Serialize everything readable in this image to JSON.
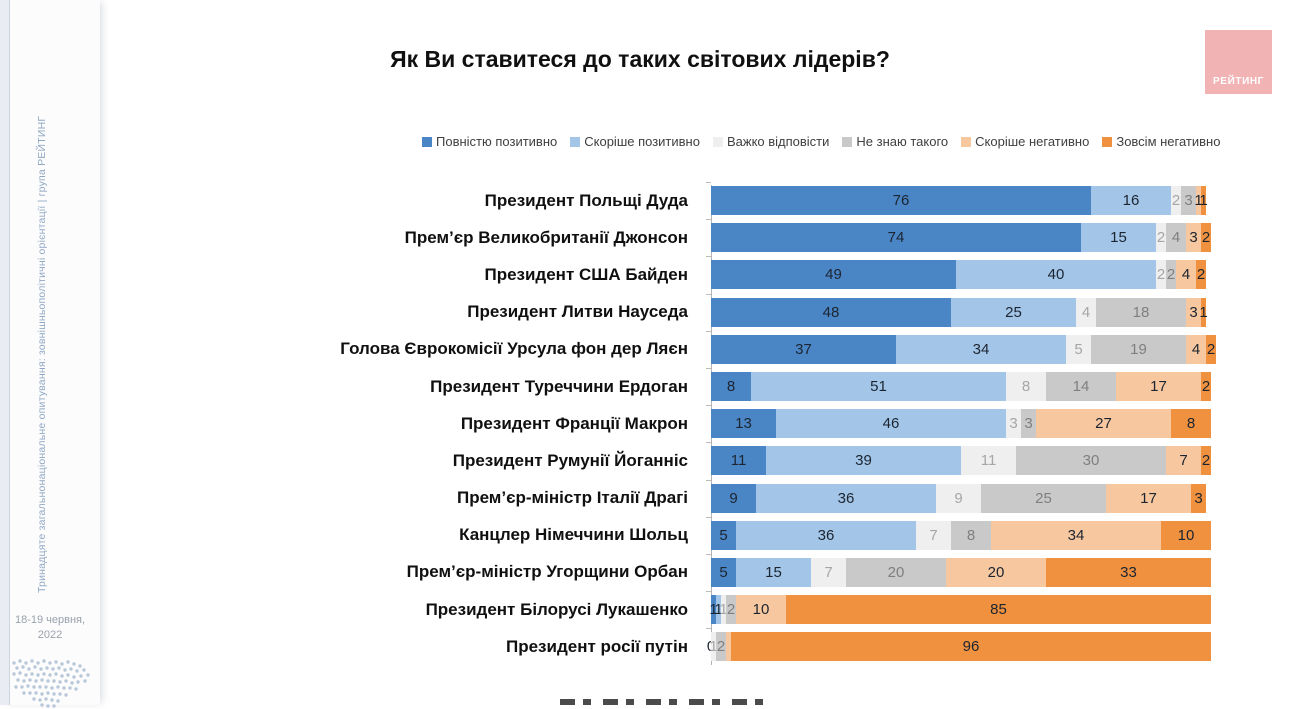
{
  "sidebar": {
    "series_text": "Тринадцяте загальнонаціональне опитування: зовнішньополітичні орієнтації | група РЕЙТИНГ",
    "date_line1": "18-19 червня,",
    "date_line2": "2022"
  },
  "logo": {
    "text": "РЕЙТИНГ",
    "background": "#f2b3b5",
    "text_color": "#ffffff"
  },
  "chart_data": {
    "type": "bar",
    "orientation": "horizontal-stacked",
    "title": "Як Ви ставитеся до таких світових лідерів?",
    "unit": "percent",
    "x_max": 100,
    "grid": false,
    "legend_position": "top",
    "series": [
      {
        "name": "Повністю позитивно",
        "color": "#4a86c6",
        "label_color": "#1c2430"
      },
      {
        "name": "Скоріше позитивно",
        "color": "#a3c6e8",
        "label_color": "#1c2430"
      },
      {
        "name": "Важко відповісти",
        "color": "#efefef",
        "label_color": "#a6a6a6"
      },
      {
        "name": "Не знаю такого",
        "color": "#c9c9c9",
        "label_color": "#7f7f7f"
      },
      {
        "name": "Скоріше негативно",
        "color": "#f7c8a0",
        "label_color": "#1c2430"
      },
      {
        "name": "Зовсім негативно",
        "color": "#ef913f",
        "label_color": "#1c2430"
      }
    ],
    "rows": [
      {
        "label": "Президент Польщі Дуда",
        "values": [
          76,
          16,
          2,
          3,
          1,
          1
        ],
        "labels": [
          "76",
          "16",
          "2",
          "3",
          "1",
          "1"
        ]
      },
      {
        "label": "Прем’єр Великобританії Джонсон",
        "values": [
          74,
          15,
          2,
          4,
          3,
          2
        ],
        "labels": [
          "74",
          "15",
          "2",
          "4",
          "3",
          "2"
        ]
      },
      {
        "label": "Президент США Байден",
        "values": [
          49,
          40,
          2,
          2,
          4,
          2
        ],
        "labels": [
          "49",
          "40",
          "2",
          "2",
          "4",
          "2"
        ]
      },
      {
        "label": "Президент Литви Науседа",
        "values": [
          48,
          25,
          4,
          18,
          3,
          1
        ],
        "labels": [
          "48",
          "25",
          "4",
          "18",
          "3",
          "1"
        ]
      },
      {
        "label": "Голова Єврокомісії Урсула фон дер Ляєн",
        "values": [
          37,
          34,
          5,
          19,
          4,
          2
        ],
        "labels": [
          "37",
          "34",
          "5",
          "19",
          "4",
          "2"
        ]
      },
      {
        "label": "Президент Туреччини Ердоган",
        "values": [
          8,
          51,
          8,
          14,
          17,
          2
        ],
        "labels": [
          "8",
          "51",
          "8",
          "14",
          "17",
          "2"
        ]
      },
      {
        "label": "Президент Франції Макрон",
        "values": [
          13,
          46,
          3,
          3,
          27,
          8
        ],
        "labels": [
          "13",
          "46",
          "3",
          "3",
          "27",
          "8"
        ]
      },
      {
        "label": "Президент Румунії Йоганніс",
        "values": [
          11,
          39,
          11,
          30,
          7,
          2
        ],
        "labels": [
          "11",
          "39",
          "11",
          "30",
          "7",
          "2"
        ]
      },
      {
        "label": "Прем’єр-міністр Італії Драгі",
        "values": [
          9,
          36,
          9,
          25,
          17,
          3
        ],
        "labels": [
          "9",
          "36",
          "9",
          "25",
          "17",
          "3"
        ]
      },
      {
        "label": "Канцлер Німеччини Шольц",
        "values": [
          5,
          36,
          7,
          8,
          34,
          10
        ],
        "labels": [
          "5",
          "36",
          "7",
          "8",
          "34",
          "10"
        ]
      },
      {
        "label": "Прем’єр-міністр Угорщини Орбан",
        "values": [
          5,
          15,
          7,
          20,
          20,
          33
        ],
        "labels": [
          "5",
          "15",
          "7",
          "20",
          "20",
          "33"
        ]
      },
      {
        "label": "Президент Білорусі Лукашенко",
        "values": [
          1,
          1,
          1,
          2,
          10,
          85
        ],
        "labels": [
          "1",
          "1",
          "1",
          "2",
          "10",
          "85"
        ]
      },
      {
        "label": "Президент росії путін",
        "values": [
          0,
          0,
          1,
          2,
          1,
          96
        ],
        "labels": [
          "0",
          "",
          "1",
          "2",
          "",
          "96"
        ]
      }
    ]
  }
}
